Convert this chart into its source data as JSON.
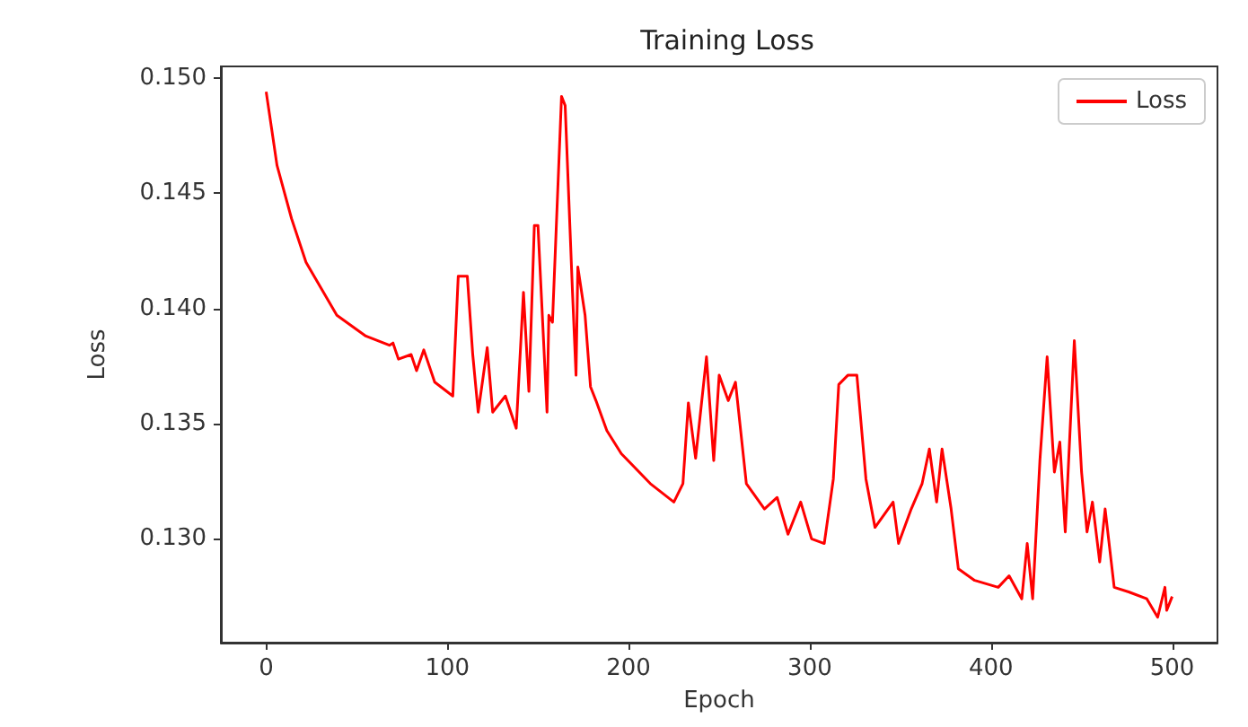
{
  "chart_data": {
    "type": "line",
    "title": "Training Loss",
    "xlabel": "Epoch",
    "ylabel": "Loss",
    "x": [
      0,
      3,
      6,
      14,
      22,
      39,
      55,
      68,
      70,
      73,
      80,
      83,
      87,
      93,
      103,
      106,
      111,
      114,
      117,
      122,
      125,
      132,
      138,
      142,
      145,
      148,
      150,
      155,
      156,
      158,
      163,
      165,
      169,
      171,
      172,
      176,
      179,
      182,
      188,
      196,
      212,
      225,
      230,
      233,
      237,
      243,
      247,
      250,
      255,
      259,
      265,
      275,
      282,
      288,
      295,
      301,
      308,
      313,
      316,
      321,
      326,
      331,
      336,
      346,
      349,
      356,
      362,
      366,
      370,
      373,
      378,
      382,
      391,
      404,
      410,
      417,
      420,
      423,
      427,
      431,
      435,
      438,
      441,
      446,
      450,
      453,
      456,
      460,
      463,
      468,
      476,
      486,
      492,
      496,
      497,
      500
    ],
    "series": [
      {
        "name": "Loss",
        "color": "#ff0000",
        "values": [
          0.1494,
          0.1478,
          0.1462,
          0.1439,
          0.142,
          0.1397,
          0.1388,
          0.1384,
          0.1385,
          0.1378,
          0.138,
          0.1373,
          0.1382,
          0.1368,
          0.1362,
          0.1414,
          0.1414,
          0.138,
          0.1355,
          0.1383,
          0.1355,
          0.1362,
          0.1348,
          0.1407,
          0.1364,
          0.1436,
          0.1436,
          0.1355,
          0.1397,
          0.1394,
          0.1492,
          0.1488,
          0.1408,
          0.1371,
          0.1418,
          0.1397,
          0.1366,
          0.136,
          0.1347,
          0.1337,
          0.1324,
          0.1316,
          0.1324,
          0.1359,
          0.1335,
          0.1379,
          0.1334,
          0.1371,
          0.136,
          0.1368,
          0.1324,
          0.1313,
          0.1318,
          0.1302,
          0.1316,
          0.13,
          0.1298,
          0.1326,
          0.1367,
          0.1371,
          0.1371,
          0.1326,
          0.1305,
          0.1316,
          0.1298,
          0.1313,
          0.1324,
          0.1339,
          0.1316,
          0.1339,
          0.1313,
          0.1287,
          0.1282,
          0.1279,
          0.1284,
          0.1274,
          0.1298,
          0.1274,
          0.1334,
          0.1379,
          0.1329,
          0.1342,
          0.1303,
          0.1386,
          0.1329,
          0.1303,
          0.1316,
          0.129,
          0.1313,
          0.1279,
          0.1277,
          0.1274,
          0.1266,
          0.1279,
          0.1269,
          0.1275
        ]
      }
    ],
    "xlim": [
      -25,
      525
    ],
    "xticks": [
      0,
      100,
      200,
      300,
      400,
      500
    ],
    "ylim": [
      0.1255,
      0.1505
    ],
    "yticks": [
      {
        "value": 0.13,
        "label": "0.130"
      },
      {
        "value": 0.135,
        "label": "0.135"
      },
      {
        "value": 0.14,
        "label": "0.140"
      },
      {
        "value": 0.145,
        "label": "0.145"
      },
      {
        "value": 0.15,
        "label": "0.150"
      }
    ],
    "grid": false,
    "legend": "top right",
    "marker": "none",
    "line_style": "solid"
  }
}
